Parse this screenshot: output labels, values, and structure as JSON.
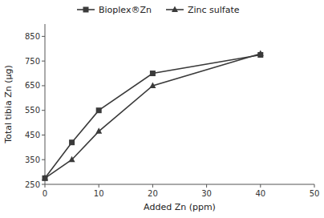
{
  "chart_data": {
    "type": "line",
    "x": [
      0,
      5,
      10,
      20,
      40
    ],
    "series": [
      {
        "name": "Bioplex®Zn",
        "color": "#3a3a3a",
        "marker": "square",
        "values": [
          275,
          420,
          550,
          700,
          775
        ]
      },
      {
        "name": "Zinc sulfate",
        "color": "#3a3a3a",
        "marker": "triangle",
        "values": [
          275,
          350,
          465,
          650,
          780
        ]
      }
    ],
    "xlabel": "Added Zn (ppm)",
    "ylabel": "Total tibia Zn (µg)",
    "xlim": [
      0,
      50
    ],
    "ylim": [
      250,
      900
    ],
    "xticks": [
      0,
      10,
      20,
      30,
      40,
      50
    ],
    "yticks": [
      250,
      350,
      450,
      550,
      650,
      750,
      850
    ],
    "legend": "top",
    "grid": false
  }
}
